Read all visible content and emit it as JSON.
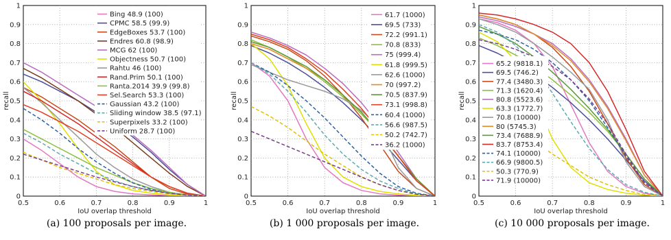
{
  "chart_data": [
    {
      "type": "line",
      "caption": "(a) 100 proposals per image.",
      "xlabel": "IoU overlap threshold",
      "ylabel": "recall",
      "xlim": [
        0.5,
        1
      ],
      "ylim": [
        0,
        1
      ],
      "xticks": [
        "0.5",
        "0.6",
        "0.7",
        "0.8",
        "0.9",
        "1"
      ],
      "yticks": [
        "0",
        "0.1",
        "0.2",
        "0.3",
        "0.4",
        "0.5",
        "0.6",
        "0.7",
        "0.8",
        "0.9",
        "1"
      ],
      "grid": true,
      "legend_position": "top-right",
      "x": [
        0.5,
        0.55,
        0.6,
        0.65,
        0.7,
        0.75,
        0.8,
        0.85,
        0.9,
        0.95,
        1.0
      ],
      "series": [
        {
          "name": "Bing 48.9 (100)",
          "color": "#e377c2",
          "dash": "solid",
          "values": [
            0.3,
            0.24,
            0.17,
            0.1,
            0.05,
            0.025,
            0.012,
            0.006,
            0.003,
            0.001,
            0
          ]
        },
        {
          "name": "CPMC 58.5 (99.9)",
          "color": "#4d4d99",
          "dash": "solid",
          "values": [
            0.64,
            0.6,
            0.55,
            0.5,
            0.44,
            0.38,
            0.31,
            0.23,
            0.14,
            0.06,
            0
          ]
        },
        {
          "name": "EdgeBoxes 53.7 (100)",
          "color": "#c84a1a",
          "dash": "solid",
          "values": [
            0.57,
            0.52,
            0.46,
            0.4,
            0.33,
            0.26,
            0.18,
            0.1,
            0.04,
            0.01,
            0
          ]
        },
        {
          "name": "Endres 60.8 (98.9)",
          "color": "#7a3b1a",
          "dash": "solid",
          "values": [
            0.67,
            0.62,
            0.56,
            0.5,
            0.43,
            0.36,
            0.28,
            0.2,
            0.12,
            0.05,
            0
          ]
        },
        {
          "name": "MCG 62 (100)",
          "color": "#b86bbf",
          "dash": "solid",
          "values": [
            0.7,
            0.65,
            0.59,
            0.53,
            0.47,
            0.4,
            0.32,
            0.24,
            0.15,
            0.06,
            0
          ]
        },
        {
          "name": "Objectness 50.7 (100)",
          "color": "#e0e000",
          "dash": "solid",
          "values": [
            0.6,
            0.5,
            0.38,
            0.25,
            0.13,
            0.06,
            0.03,
            0.015,
            0.007,
            0.002,
            0
          ]
        },
        {
          "name": "Rahtu 46 (100)",
          "color": "#999999",
          "dash": "solid",
          "values": [
            0.57,
            0.49,
            0.4,
            0.31,
            0.22,
            0.15,
            0.09,
            0.05,
            0.02,
            0.006,
            0
          ]
        },
        {
          "name": "Rand.Prim 50.1 (100)",
          "color": "#d62728",
          "dash": "solid",
          "values": [
            0.55,
            0.5,
            0.44,
            0.38,
            0.31,
            0.24,
            0.17,
            0.1,
            0.05,
            0.015,
            0
          ]
        },
        {
          "name": "Ranta.2014 39.9 (99.8)",
          "color": "#8fbf3f",
          "dash": "solid",
          "values": [
            0.35,
            0.3,
            0.25,
            0.2,
            0.15,
            0.11,
            0.07,
            0.04,
            0.02,
            0.006,
            0
          ]
        },
        {
          "name": "Sel.Search 53.3 (100)",
          "color": "#e04020",
          "dash": "solid",
          "values": [
            0.48,
            0.44,
            0.39,
            0.34,
            0.28,
            0.22,
            0.16,
            0.1,
            0.05,
            0.015,
            0
          ]
        },
        {
          "name": "Gaussian 43.2 (100)",
          "color": "#2a5fa0",
          "dash": "dashed",
          "values": [
            0.46,
            0.4,
            0.33,
            0.25,
            0.18,
            0.12,
            0.07,
            0.035,
            0.015,
            0.004,
            0
          ]
        },
        {
          "name": "Sliding window 38.5 (97.1)",
          "color": "#5aaab0",
          "dash": "dashed",
          "values": [
            0.33,
            0.28,
            0.22,
            0.17,
            0.12,
            0.08,
            0.05,
            0.03,
            0.015,
            0.005,
            0
          ]
        },
        {
          "name": "Superpixels 33.2 (100)",
          "color": "#e0c000",
          "dash": "dashed",
          "values": [
            0.23,
            0.19,
            0.15,
            0.12,
            0.09,
            0.06,
            0.04,
            0.025,
            0.012,
            0.004,
            0
          ]
        },
        {
          "name": "Uniform 28.7 (100)",
          "color": "#7a3b8a",
          "dash": "dashed",
          "values": [
            0.22,
            0.19,
            0.16,
            0.13,
            0.1,
            0.075,
            0.05,
            0.03,
            0.015,
            0.005,
            0
          ]
        }
      ]
    },
    {
      "type": "line",
      "caption": "(b) 1 000 proposals per image.",
      "xlabel": "IoU overlap threshold",
      "ylabel": "recall",
      "xlim": [
        0.5,
        1
      ],
      "ylim": [
        0,
        1
      ],
      "xticks": [
        "0.5",
        "0.6",
        "0.7",
        "0.8",
        "0.9",
        "1"
      ],
      "yticks": [
        "0",
        "0.1",
        "0.2",
        "0.3",
        "0.4",
        "0.5",
        "0.6",
        "0.7",
        "0.8",
        "0.9",
        "1"
      ],
      "grid": true,
      "legend_position": "top-right",
      "x": [
        0.5,
        0.55,
        0.6,
        0.65,
        0.7,
        0.75,
        0.8,
        0.85,
        0.9,
        0.95,
        1.0
      ],
      "series": [
        {
          "name": "61.7 (1000)",
          "color": "#e377c2",
          "dash": "solid",
          "values": [
            0.7,
            0.63,
            0.5,
            0.3,
            0.15,
            0.07,
            0.03,
            0.012,
            0.005,
            0.002,
            0
          ]
        },
        {
          "name": "69.5 (733)",
          "color": "#4d4d99",
          "dash": "solid",
          "values": [
            0.79,
            0.75,
            0.7,
            0.64,
            0.57,
            0.49,
            0.4,
            0.3,
            0.19,
            0.08,
            0
          ]
        },
        {
          "name": "72.2 (991.1)",
          "color": "#c84a1a",
          "dash": "solid",
          "values": [
            0.84,
            0.81,
            0.77,
            0.71,
            0.63,
            0.53,
            0.41,
            0.27,
            0.13,
            0.04,
            0
          ]
        },
        {
          "name": "70.8 (833)",
          "color": "#8fbf3f",
          "dash": "solid",
          "values": [
            0.82,
            0.78,
            0.73,
            0.67,
            0.6,
            0.52,
            0.43,
            0.33,
            0.21,
            0.09,
            0
          ]
        },
        {
          "name": "75 (999.4)",
          "color": "#b86bbf",
          "dash": "solid",
          "values": [
            0.86,
            0.83,
            0.79,
            0.74,
            0.67,
            0.59,
            0.49,
            0.37,
            0.23,
            0.09,
            0
          ]
        },
        {
          "name": "61.8 (999.5)",
          "color": "#e0e000",
          "dash": "solid",
          "values": [
            0.8,
            0.72,
            0.58,
            0.38,
            0.2,
            0.1,
            0.05,
            0.025,
            0.012,
            0.004,
            0
          ]
        },
        {
          "name": "62.6 (1000)",
          "color": "#999999",
          "dash": "solid",
          "values": [
            0.69,
            0.65,
            0.61,
            0.58,
            0.55,
            0.51,
            0.45,
            0.36,
            0.15,
            0.04,
            0
          ]
        },
        {
          "name": "70 (997.2)",
          "color": "#e08a2a",
          "dash": "solid",
          "values": [
            0.8,
            0.77,
            0.72,
            0.67,
            0.61,
            0.53,
            0.44,
            0.33,
            0.21,
            0.09,
            0
          ]
        },
        {
          "name": "70.5 (837.9)",
          "color": "#5a9a3a",
          "dash": "solid",
          "values": [
            0.81,
            0.78,
            0.73,
            0.68,
            0.61,
            0.53,
            0.44,
            0.33,
            0.21,
            0.09,
            0
          ]
        },
        {
          "name": "73.1 (998.8)",
          "color": "#e04020",
          "dash": "solid",
          "values": [
            0.85,
            0.82,
            0.78,
            0.72,
            0.65,
            0.56,
            0.46,
            0.34,
            0.21,
            0.08,
            0
          ]
        },
        {
          "name": "60.4 (1000)",
          "color": "#2a5fa0",
          "dash": "dashed",
          "values": [
            0.7,
            0.65,
            0.58,
            0.5,
            0.41,
            0.31,
            0.21,
            0.12,
            0.05,
            0.015,
            0
          ]
        },
        {
          "name": "56.6 (987.5)",
          "color": "#5aaab0",
          "dash": "dashed",
          "values": [
            0.7,
            0.64,
            0.55,
            0.44,
            0.32,
            0.22,
            0.14,
            0.08,
            0.04,
            0.012,
            0
          ]
        },
        {
          "name": "50.2 (742.7)",
          "color": "#e0c000",
          "dash": "dashed",
          "values": [
            0.47,
            0.42,
            0.36,
            0.29,
            0.22,
            0.16,
            0.1,
            0.06,
            0.03,
            0.008,
            0
          ]
        },
        {
          "name": "36.2 (1000)",
          "color": "#7a3b8a",
          "dash": "dashed",
          "values": [
            0.34,
            0.3,
            0.26,
            0.22,
            0.18,
            0.14,
            0.1,
            0.06,
            0.03,
            0.01,
            0
          ]
        }
      ]
    },
    {
      "type": "line",
      "caption": "(c) 10 000 proposals per image.",
      "xlabel": "IoU overlap threshold",
      "ylabel": "recall",
      "xlim": [
        0.5,
        1
      ],
      "ylim": [
        0,
        1
      ],
      "xticks": [
        "0.5",
        "0.6",
        "0.7",
        "0.8",
        "0.9",
        "1"
      ],
      "yticks": [
        "0",
        "0.1",
        "0.2",
        "0.3",
        "0.4",
        "0.5",
        "0.6",
        "0.7",
        "0.8",
        "0.9",
        "1"
      ],
      "grid": true,
      "legend_position": "left",
      "x": [
        0.5,
        0.55,
        0.6,
        0.65,
        0.7,
        0.75,
        0.8,
        0.85,
        0.9,
        0.95,
        1.0
      ],
      "series": [
        {
          "name": "65.2 (9818.1)",
          "color": "#e377c2",
          "dash": "solid",
          "values": [
            0.93,
            0.91,
            0.87,
            0.8,
            0.68,
            0.48,
            0.28,
            0.13,
            0.05,
            0.015,
            0
          ]
        },
        {
          "name": "69.5 (746.2)",
          "color": "#4d4d99",
          "dash": "solid",
          "values": [
            0.79,
            0.75,
            0.7,
            0.64,
            0.57,
            0.49,
            0.4,
            0.3,
            0.19,
            0.08,
            0
          ]
        },
        {
          "name": "77.4 (3480.3)",
          "color": "#c84a1a",
          "dash": "solid",
          "values": [
            0.95,
            0.93,
            0.9,
            0.85,
            0.78,
            0.68,
            0.55,
            0.38,
            0.2,
            0.06,
            0
          ]
        },
        {
          "name": "71.3 (1620.4)",
          "color": "#8fbf3f",
          "dash": "solid",
          "values": [
            0.83,
            0.79,
            0.74,
            0.68,
            0.61,
            0.53,
            0.44,
            0.34,
            0.22,
            0.09,
            0
          ]
        },
        {
          "name": "80.8 (5523.6)",
          "color": "#b86bbf",
          "dash": "solid",
          "values": [
            0.94,
            0.92,
            0.89,
            0.85,
            0.8,
            0.72,
            0.61,
            0.47,
            0.3,
            0.11,
            0
          ]
        },
        {
          "name": "63.3 (1772.7)",
          "color": "#e0e000",
          "dash": "solid",
          "values": [
            0.86,
            0.81,
            0.71,
            0.52,
            0.3,
            0.15,
            0.07,
            0.035,
            0.015,
            0.005,
            0
          ]
        },
        {
          "name": "70.8 (10000)",
          "color": "#999999",
          "dash": "solid",
          "values": [
            0.93,
            0.9,
            0.86,
            0.8,
            0.73,
            0.65,
            0.56,
            0.4,
            0.18,
            0.05,
            0
          ]
        },
        {
          "name": "80 (5745.3)",
          "color": "#e08a2a",
          "dash": "solid",
          "values": [
            0.95,
            0.93,
            0.9,
            0.85,
            0.79,
            0.71,
            0.6,
            0.46,
            0.29,
            0.11,
            0
          ]
        },
        {
          "name": "73.4 (7688.9)",
          "color": "#5a9a3a",
          "dash": "solid",
          "values": [
            0.89,
            0.85,
            0.8,
            0.73,
            0.65,
            0.56,
            0.46,
            0.35,
            0.22,
            0.09,
            0
          ]
        },
        {
          "name": "83.7 (8753.4)",
          "color": "#d62728",
          "dash": "solid",
          "values": [
            0.96,
            0.95,
            0.93,
            0.9,
            0.86,
            0.8,
            0.7,
            0.55,
            0.35,
            0.13,
            0
          ]
        },
        {
          "name": "74.1 (10000)",
          "color": "#2a5fa0",
          "dash": "dashed",
          "values": [
            0.87,
            0.85,
            0.82,
            0.77,
            0.7,
            0.61,
            0.5,
            0.36,
            0.21,
            0.07,
            0
          ]
        },
        {
          "name": "66.9 (9800.5)",
          "color": "#5aaab0",
          "dash": "dashed",
          "values": [
            0.9,
            0.86,
            0.79,
            0.68,
            0.54,
            0.39,
            0.25,
            0.14,
            0.06,
            0.02,
            0
          ]
        },
        {
          "name": "50.3 (770.9)",
          "color": "#e0c000",
          "dash": "dashed",
          "values": [
            0.47,
            0.42,
            0.36,
            0.29,
            0.22,
            0.16,
            0.1,
            0.06,
            0.03,
            0.008,
            0
          ]
        },
        {
          "name": "71.9 (10000)",
          "color": "#7a3b8a",
          "dash": "dashed",
          "values": [
            0.82,
            0.8,
            0.77,
            0.73,
            0.68,
            0.61,
            0.51,
            0.38,
            0.22,
            0.07,
            0
          ]
        }
      ]
    }
  ]
}
